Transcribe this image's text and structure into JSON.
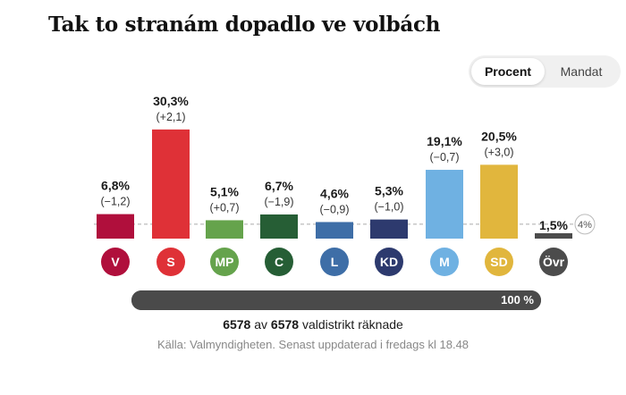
{
  "title": "Tak to stranám dopadlo ve volbách",
  "toggle": {
    "active": "Procent",
    "inactive": "Mandat"
  },
  "threshold_label": "4%",
  "chart_data": {
    "type": "bar",
    "categories": [
      "V",
      "S",
      "MP",
      "C",
      "L",
      "KD",
      "M",
      "SD",
      "Övr"
    ],
    "values": [
      6.8,
      30.3,
      5.1,
      6.7,
      4.6,
      5.3,
      19.1,
      20.5,
      1.5
    ],
    "value_labels": [
      "6,8%",
      "30,3%",
      "5,1%",
      "6,7%",
      "4,6%",
      "5,3%",
      "19,1%",
      "20,5%",
      "1,5%"
    ],
    "change_labels": [
      "(−1,2)",
      "(+2,1)",
      "(+0,7)",
      "(−1,9)",
      "(−0,9)",
      "(−1,0)",
      "(−0,7)",
      "(+3,0)",
      ""
    ],
    "colors": [
      "#b00f3c",
      "#df3137",
      "#65a34c",
      "#265e35",
      "#3e6ea7",
      "#2d3a6e",
      "#6fb1e2",
      "#e1b63d",
      "#4c4c4c"
    ],
    "threshold": 4,
    "grid": false
  },
  "progress": {
    "percent": 100,
    "label": "100 %"
  },
  "counted": {
    "counted": "6578",
    "sep": "av",
    "total": "6578",
    "suffix": "valdistrikt räknade"
  },
  "source": "Källa: Valmyndigheten. Senast uppdaterad i fredags kl 18.48"
}
